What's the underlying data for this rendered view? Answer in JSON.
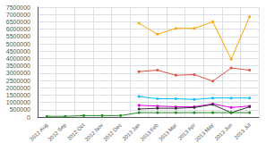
{
  "chart_data": {
    "type": "line",
    "categories": [
      "2012 Aug",
      "2012 Sep",
      "2012 Oct",
      "2012 Nov",
      "2012 Dec",
      "2013 Jan",
      "2013 Feb",
      "2013 Mar",
      "2013 Apr",
      "2013 May",
      "2013 Jun",
      "2013 Jul"
    ],
    "series": [
      {
        "color": "#FFA500",
        "marker": "circle",
        "values": [
          null,
          null,
          null,
          null,
          null,
          6400000,
          5650000,
          6050000,
          6050000,
          6500000,
          3950000,
          6850000
        ]
      },
      {
        "color": "#E05040",
        "marker": "circle",
        "values": [
          null,
          null,
          null,
          null,
          null,
          3100000,
          3200000,
          2850000,
          2900000,
          2450000,
          3350000,
          3200000
        ]
      },
      {
        "color": "#00BFFF",
        "marker": "circle",
        "values": [
          null,
          null,
          null,
          null,
          null,
          1400000,
          1250000,
          1250000,
          1200000,
          1300000,
          1300000,
          1300000
        ]
      },
      {
        "color": "#DD00DD",
        "marker": "circle",
        "values": [
          null,
          null,
          null,
          null,
          null,
          800000,
          750000,
          700000,
          700000,
          900000,
          650000,
          750000
        ]
      },
      {
        "color": "#333333",
        "marker": "circle",
        "values": [
          null,
          null,
          null,
          null,
          null,
          550000,
          600000,
          600000,
          650000,
          850000,
          300000,
          700000
        ]
      },
      {
        "color": "#228B22",
        "marker": "circle",
        "values": [
          50000,
          50000,
          100000,
          100000,
          100000,
          300000,
          300000,
          300000,
          300000,
          300000,
          300000,
          300000
        ]
      }
    ],
    "ylim": [
      0,
      7500000
    ],
    "yticks": [
      0,
      500000,
      1000000,
      1500000,
      2000000,
      2500000,
      3000000,
      3500000,
      4000000,
      4500000,
      5000000,
      5500000,
      6000000,
      6500000,
      7000000,
      7500000
    ],
    "grid": true
  }
}
